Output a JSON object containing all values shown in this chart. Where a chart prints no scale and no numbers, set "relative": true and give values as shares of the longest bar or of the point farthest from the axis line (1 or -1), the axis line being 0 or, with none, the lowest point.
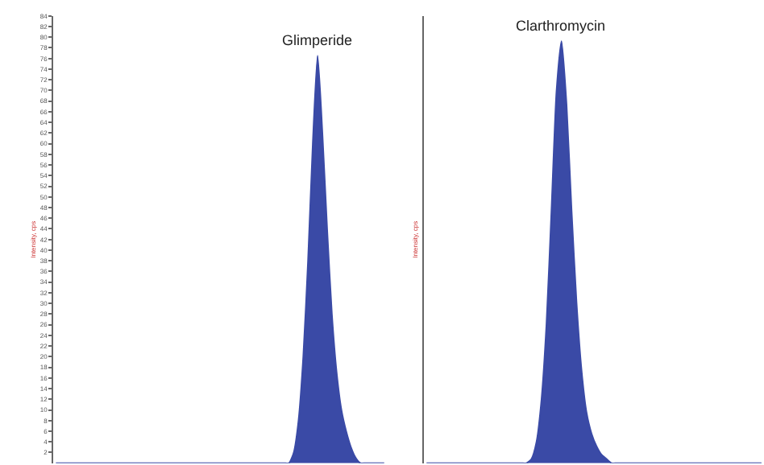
{
  "chart_data": [
    {
      "type": "area",
      "ylabel": "Intensity, cps",
      "categories": [
        null,
        null,
        null,
        null,
        null,
        null,
        null,
        null,
        null,
        null,
        null,
        null,
        null,
        null,
        null,
        null,
        null,
        null,
        null,
        null,
        null,
        null,
        null,
        null,
        null,
        null,
        null,
        null,
        null,
        null,
        null,
        null,
        null,
        null,
        null,
        null,
        null,
        null,
        null,
        null,
        null,
        null,
        null,
        null,
        null,
        null,
        null,
        null,
        null,
        null,
        null,
        null,
        null,
        null,
        null,
        null,
        null,
        null,
        null,
        null,
        null,
        null,
        null,
        null,
        null,
        null,
        null,
        null,
        null,
        null
      ],
      "series": [
        {
          "name": "Glimperide",
          "color": "#3a4aa6",
          "values": [
            0,
            0,
            0,
            0,
            0,
            0,
            0,
            0,
            0,
            0,
            0,
            0,
            0,
            0,
            0,
            0,
            0,
            0,
            0,
            0,
            0,
            0,
            0,
            0,
            0,
            0,
            0,
            0,
            0,
            0,
            0,
            0,
            0,
            0,
            0,
            0,
            0,
            0,
            0,
            0,
            0,
            0,
            0,
            0,
            0,
            0,
            0,
            0,
            0,
            0,
            2,
            8,
            20,
            38,
            60,
            76.5,
            62,
            44,
            28,
            17,
            10,
            6,
            3,
            1,
            0,
            0,
            0,
            0,
            0,
            0
          ]
        }
      ],
      "ylim": [
        0,
        84
      ],
      "yticks": [
        2,
        4,
        6,
        8,
        10,
        12,
        14,
        16,
        18,
        20,
        22,
        24,
        26,
        28,
        30,
        32,
        34,
        36,
        38,
        40,
        42,
        44,
        46,
        48,
        50,
        52,
        54,
        56,
        58,
        60,
        62,
        64,
        66,
        68,
        70,
        72,
        74,
        76,
        78,
        80,
        82,
        84
      ]
    },
    {
      "type": "area",
      "ylabel": "Intensity, cps",
      "relative": true,
      "categories": [
        null,
        null,
        null,
        null,
        null,
        null,
        null,
        null,
        null,
        null,
        null,
        null,
        null,
        null,
        null,
        null,
        null,
        null,
        null,
        null,
        null,
        null,
        null,
        null,
        null,
        null,
        null,
        null,
        null,
        null,
        null,
        null,
        null,
        null,
        null,
        null,
        null,
        null,
        null,
        null,
        null,
        null,
        null,
        null,
        null,
        null,
        null,
        null,
        null,
        null,
        null,
        null,
        null,
        null,
        null,
        null,
        null,
        null,
        null,
        null,
        null,
        null,
        null,
        null,
        null,
        null,
        null,
        null
      ],
      "series": [
        {
          "name": "Clarthromycin",
          "color": "#3a4aa6",
          "values": [
            0,
            0,
            0,
            0,
            0,
            0,
            0,
            0,
            0,
            0,
            0,
            0,
            0,
            0,
            0,
            0,
            0,
            0,
            0,
            0,
            0,
            0.01,
            0.05,
            0.15,
            0.33,
            0.6,
            0.88,
            1,
            0.85,
            0.6,
            0.38,
            0.22,
            0.12,
            0.07,
            0.04,
            0.02,
            0.01,
            0,
            0,
            0,
            0,
            0,
            0,
            0,
            0,
            0,
            0,
            0,
            0,
            0,
            0,
            0,
            0,
            0,
            0,
            0,
            0,
            0,
            0,
            0,
            0,
            0,
            0,
            0,
            0,
            0,
            0,
            0
          ]
        }
      ]
    }
  ]
}
